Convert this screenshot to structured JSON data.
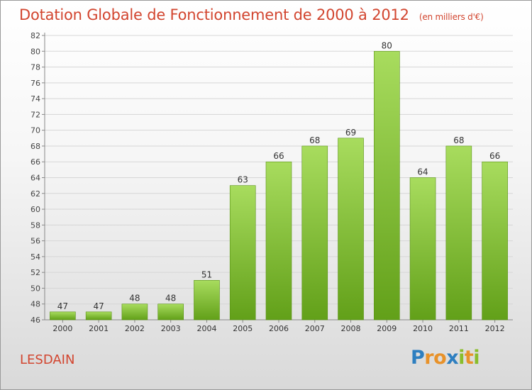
{
  "chart_data": {
    "type": "bar",
    "title": "Dotation Globale de Fonctionnement de 2000 à 2012",
    "subtitle": "(en milliers d'€)",
    "categories": [
      "2000",
      "2001",
      "2002",
      "2003",
      "2004",
      "2005",
      "2006",
      "2007",
      "2008",
      "2009",
      "2010",
      "2011",
      "2012"
    ],
    "values": [
      47,
      47,
      48,
      48,
      51,
      63,
      66,
      68,
      69,
      80,
      64,
      68,
      66
    ],
    "ylim": [
      46,
      82
    ],
    "yticks": [
      46,
      48,
      50,
      52,
      54,
      56,
      58,
      60,
      62,
      64,
      66,
      68,
      70,
      72,
      74,
      76,
      78,
      80,
      82
    ],
    "grid": true,
    "bar_color": "#7bbd2f",
    "bar_highlight_color": "#a8dc5e"
  },
  "commune": "LESDAIN",
  "logo": {
    "letters": [
      "P",
      "r",
      "o",
      "x",
      "i",
      "t",
      "i"
    ],
    "colors": [
      "#2e7fc0",
      "#e8922a",
      "#e8922a",
      "#2e7fc0",
      "#89bd2b",
      "#e8922a",
      "#89bd2b"
    ]
  }
}
